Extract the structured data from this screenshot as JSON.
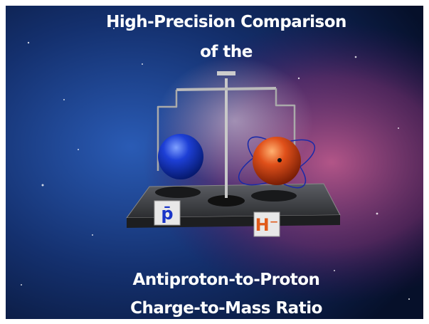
{
  "title": {
    "line1": "High-Precision Comparison",
    "line2": "of the"
  },
  "caption": {
    "line1": "Antiproton-to-Proton",
    "line2": "Charge-to-Mass Ratio"
  },
  "labels": {
    "left": "p̄",
    "right": "H⁻"
  }
}
